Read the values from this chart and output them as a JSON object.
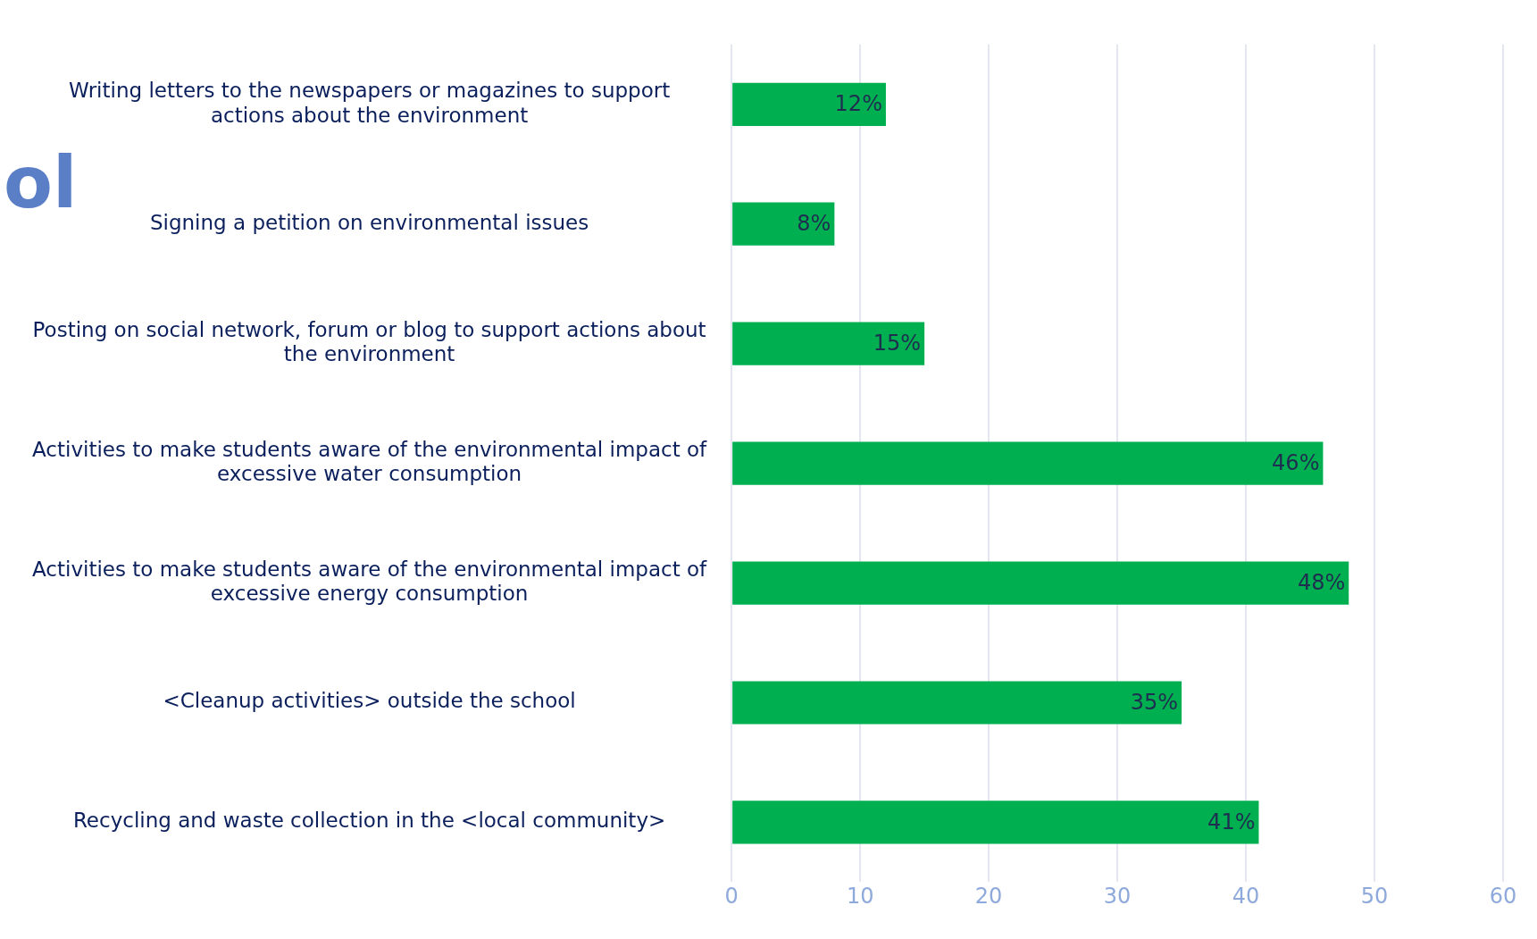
{
  "chart_data": {
    "type": "bar",
    "orientation": "horizontal",
    "categories": [
      "Writing letters to the newspapers or magazines to support actions about the environment",
      "Signing a petition on environmental issues",
      "Posting on social network, forum or blog to support actions about the environment",
      "Activities to make students aware of the environmental impact of excessive water consumption",
      "Activities to make students aware of the environmental impact of excessive energy consumption",
      "<Cleanup activities> outside the school",
      "Recycling and waste collection in the <local community>"
    ],
    "values": [
      12,
      8,
      15,
      46,
      48,
      35,
      41
    ],
    "value_labels": [
      "12%",
      "8%",
      "15%",
      "46%",
      "48%",
      "35%",
      "41%"
    ],
    "color": "#00b050",
    "xlim": [
      0,
      60
    ],
    "xticks": [
      0,
      10,
      20,
      30,
      40,
      50,
      60
    ],
    "grid": "x",
    "legend": false,
    "annotations": [
      "ol"
    ]
  }
}
